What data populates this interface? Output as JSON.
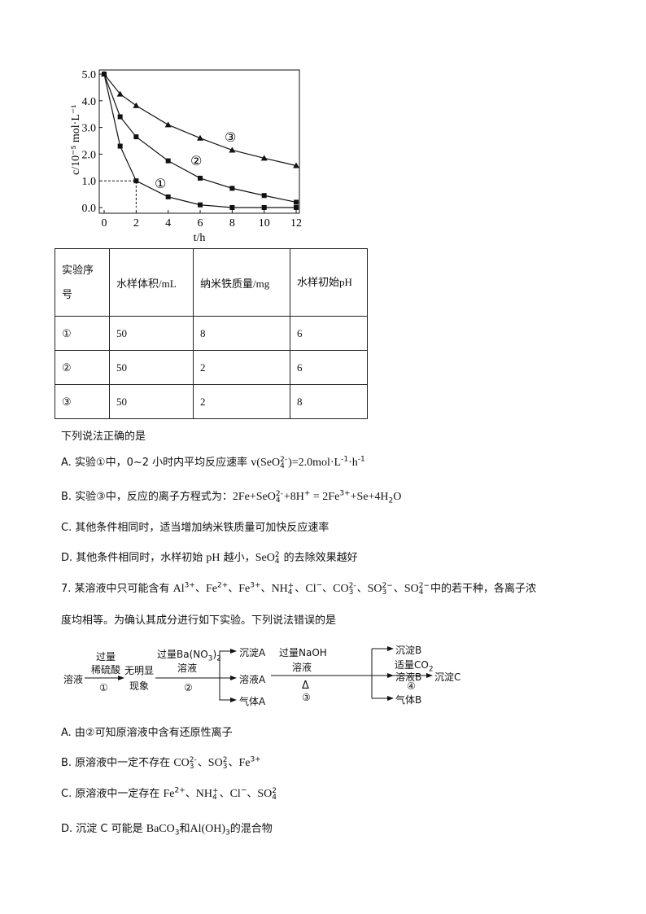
{
  "chart_data": {
    "type": "line",
    "xlabel": "t/h",
    "ylabel": "c/10^-5 mol·L^-1",
    "xlim": [
      0,
      12
    ],
    "ylim": [
      0,
      5
    ],
    "x_ticks": [
      "0",
      "2",
      "4",
      "6",
      "8",
      "10",
      "12"
    ],
    "y_ticks": [
      "0.0",
      "1.0",
      "2.0",
      "3.0",
      "4.0",
      "5.0"
    ],
    "x": [
      0,
      1,
      2,
      4,
      6,
      8,
      10,
      12
    ],
    "series": [
      {
        "name": "①",
        "marker": "square",
        "values": [
          5.0,
          2.3,
          1.0,
          0.4,
          0.1,
          0.0,
          0.0,
          0.0
        ]
      },
      {
        "name": "②",
        "marker": "square",
        "values": [
          5.0,
          3.4,
          2.65,
          1.75,
          1.1,
          0.72,
          0.45,
          0.2
        ]
      },
      {
        "name": "③",
        "marker": "triangle",
        "values": [
          5.0,
          4.25,
          3.82,
          3.1,
          2.6,
          2.15,
          1.85,
          1.57
        ]
      }
    ],
    "annotation": "dashed guide at t=2, c=1.0"
  },
  "table": {
    "headers": [
      "实验序号",
      "水样体积/mL",
      "纳米铁质量/mg",
      "水样初始pH"
    ],
    "rows": [
      [
        "①",
        "50",
        "8",
        "6"
      ],
      [
        "②",
        "50",
        "2",
        "6"
      ],
      [
        "③",
        "50",
        "2",
        "8"
      ]
    ]
  },
  "q6": {
    "prompt": [
      [
        "下列说法正确的是",
        "t"
      ]
    ],
    "A": [
      [
        "A. 实验①中，0~2 小时内平均反应速率 ",
        "t"
      ],
      [
        "v(SeO",
        "c"
      ],
      [
        "4|2-",
        "ss"
      ],
      [
        ")=2.0mol·L",
        "c"
      ],
      [
        "-1",
        "sup"
      ],
      [
        "·h",
        "c"
      ],
      [
        "-1",
        "sup"
      ]
    ],
    "B": [
      [
        "B. 实验③中，反应的离子方程式为：",
        "t"
      ],
      [
        "2Fe+SeO",
        "c"
      ],
      [
        "4|2-",
        "ss"
      ],
      [
        "+8H",
        "c"
      ],
      [
        "+",
        "sup"
      ],
      [
        " = 2Fe",
        "c"
      ],
      [
        "3+",
        "sup"
      ],
      [
        "+Se+4H",
        "c"
      ],
      [
        "2",
        "sub"
      ],
      [
        "O",
        "c"
      ]
    ],
    "C": [
      [
        "C. 其他条件相同时，适当增加纳米铁质量可加快反应速率",
        "t"
      ]
    ],
    "D": [
      [
        "D. 其他条件相同时，水样初始 ",
        "t"
      ],
      [
        "pH",
        "c"
      ],
      [
        " 越小，",
        "t"
      ],
      [
        "SeO",
        "c"
      ],
      [
        "4|2",
        "ss"
      ],
      [
        " 的去除效果越好",
        "t"
      ]
    ]
  },
  "q7": {
    "line1": [
      [
        "7. 某溶液中只可能含有 ",
        "t"
      ],
      [
        "Al",
        "c"
      ],
      [
        "3+",
        "sup"
      ],
      [
        "、",
        "t"
      ],
      [
        "Fe",
        "c"
      ],
      [
        "2+",
        "sup"
      ],
      [
        "、",
        "t"
      ],
      [
        "Fe",
        "c"
      ],
      [
        "3+",
        "sup"
      ],
      [
        "、",
        "t"
      ],
      [
        "NH",
        "c"
      ],
      [
        "4|+",
        "ss"
      ],
      [
        "、",
        "t"
      ],
      [
        "Cl",
        "c"
      ],
      [
        "−",
        "sup"
      ],
      [
        "、",
        "t"
      ],
      [
        "CO",
        "c"
      ],
      [
        "3|2-",
        "ss"
      ],
      [
        "、",
        "t"
      ],
      [
        "SO",
        "c"
      ],
      [
        "3|2−",
        "ss"
      ],
      [
        "、",
        "t"
      ],
      [
        "SO",
        "c"
      ],
      [
        "4|2−",
        "ss"
      ],
      [
        "中的若干种，各离子浓",
        "t"
      ]
    ],
    "line2": [
      [
        "度均相等。为确认其成分进行如下实验。下列说法错误的是",
        "t"
      ]
    ],
    "A": [
      [
        "A. 由②可知原溶液中含有还原性离子",
        "t"
      ]
    ],
    "B": [
      [
        "B. 原溶液中一定不存在 ",
        "t"
      ],
      [
        "CO",
        "c"
      ],
      [
        "3|2-",
        "ss"
      ],
      [
        "、",
        "t"
      ],
      [
        "SO",
        "c"
      ],
      [
        "3|2",
        "ss"
      ],
      [
        "、",
        "t"
      ],
      [
        "Fe",
        "c"
      ],
      [
        "3+",
        "sup"
      ]
    ],
    "C": [
      [
        "C. 原溶液中一定存在 ",
        "t"
      ],
      [
        "Fe",
        "c"
      ],
      [
        "2+",
        "sup"
      ],
      [
        "、",
        "t"
      ],
      [
        "NH",
        "c"
      ],
      [
        "4|+",
        "ss"
      ],
      [
        "、",
        "t"
      ],
      [
        "Cl",
        "c"
      ],
      [
        "−",
        "sup"
      ],
      [
        "、",
        "t"
      ],
      [
        "SO",
        "c"
      ],
      [
        "4|2",
        "ss"
      ]
    ],
    "D": [
      [
        "D. 沉淀 C 可能是 ",
        "t"
      ],
      [
        "BaCO",
        "c"
      ],
      [
        "3",
        "sub"
      ],
      [
        "和",
        "t"
      ],
      [
        "Al(OH)",
        "c"
      ],
      [
        "3",
        "sub"
      ],
      [
        "的混合物",
        "t"
      ]
    ]
  },
  "flow": {
    "start": "溶液",
    "s1_top": "过量",
    "s1_mid": "稀硫酸",
    "s1_num": "①",
    "r1_a": "无明显",
    "r1_b": "现象",
    "s2_top": "过量Ba(NO",
    "s2_sub": "3",
    "s2_close": ")",
    "s2_sub2": "2",
    "s2_mid": "溶液",
    "s2_num": "②",
    "pA": "沉淀A",
    "sA": "溶液A",
    "gA": "气体A",
    "s3_top": "过量NaOH",
    "s3_mid": "溶液",
    "s3_heat": "Δ",
    "s3_num": "③",
    "pB": "沉淀B",
    "sB": "溶液B",
    "gB": "气体B",
    "s4_top": "适量CO",
    "s4_sub": "2",
    "s4_num": "④",
    "pC": "沉淀C"
  }
}
